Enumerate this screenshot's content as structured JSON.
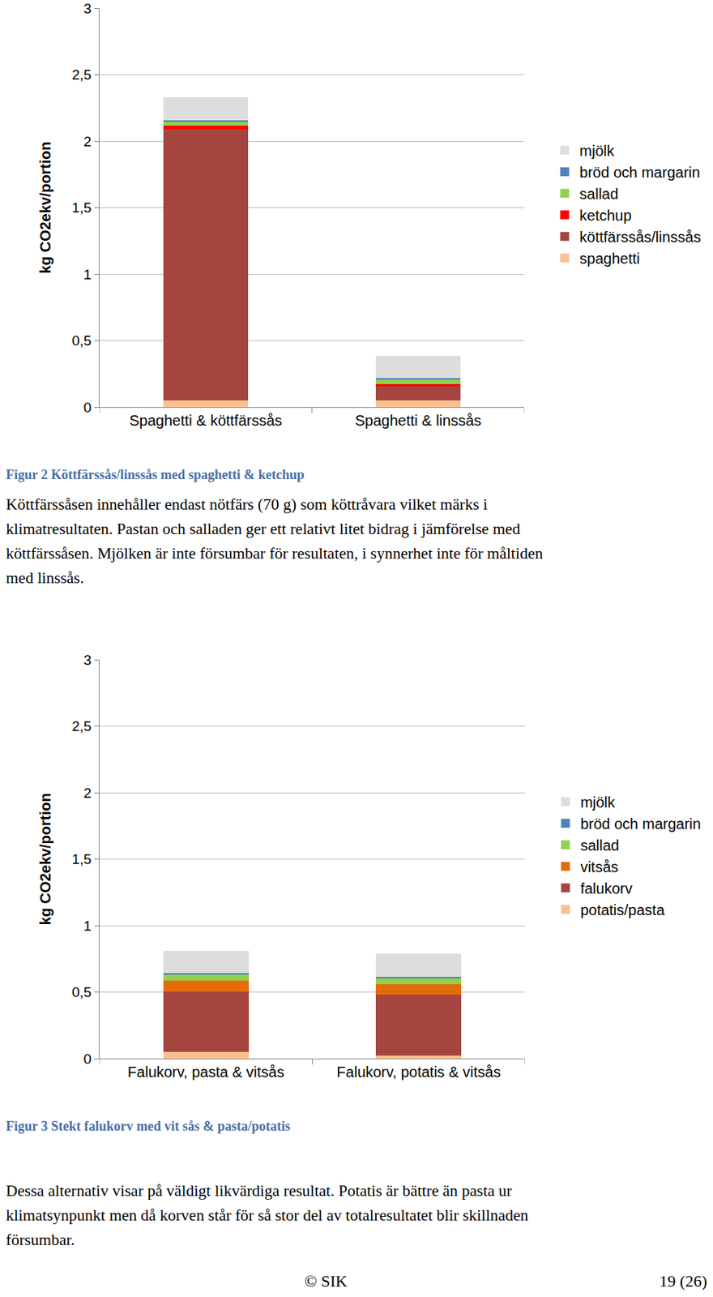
{
  "chart_data": [
    {
      "type": "bar",
      "stacked": true,
      "y_label": "kg CO2ekv/portion",
      "categories": [
        "Spaghetti & köttfärssås",
        "Spaghetti & linssås"
      ],
      "series": [
        {
          "name": "spaghetti",
          "color": "#f9c08f",
          "values": [
            0.05,
            0.05
          ]
        },
        {
          "name": "köttfärssås/linssås",
          "color": "#a5453f",
          "values": [
            2.04,
            0.105
          ]
        },
        {
          "name": "ketchup",
          "color": "#ff0000",
          "values": [
            0.025,
            0.02
          ]
        },
        {
          "name": "sallad",
          "color": "#92d050",
          "values": [
            0.03,
            0.03
          ]
        },
        {
          "name": "bröd och margarin",
          "color": "#4f81bd",
          "values": [
            0.012,
            0.012
          ]
        },
        {
          "name": "mjölk",
          "color": "#dddddd",
          "values": [
            0.175,
            0.17
          ]
        }
      ],
      "ylim": [
        0,
        3
      ],
      "yticks": [
        0,
        {
          "value": 0.5,
          "label": "0,5"
        },
        1,
        {
          "value": 1.5,
          "label": "1,5"
        },
        2,
        {
          "value": 2.5,
          "label": "2,5"
        },
        3
      ],
      "grid": true,
      "legend": "right"
    },
    {
      "type": "bar",
      "stacked": true,
      "y_label": "kg CO2ekv/portion",
      "categories": [
        "Falukorv, pasta & vitsås",
        "Falukorv, potatis & vitsås"
      ],
      "series": [
        {
          "name": "potatis/pasta",
          "color": "#f9c08f",
          "values": [
            0.05,
            0.025
          ]
        },
        {
          "name": "falukorv",
          "color": "#a5453f",
          "values": [
            0.455,
            0.455
          ]
        },
        {
          "name": "vitsås",
          "color": "#e46c0a",
          "values": [
            0.08,
            0.08
          ]
        },
        {
          "name": "sallad",
          "color": "#92d050",
          "values": [
            0.045,
            0.045
          ]
        },
        {
          "name": "bröd och margarin",
          "color": "#4f81bd",
          "values": [
            0.012,
            0.012
          ]
        },
        {
          "name": "mjölk",
          "color": "#dddddd",
          "values": [
            0.17,
            0.17
          ]
        }
      ],
      "ylim": [
        0,
        3
      ],
      "yticks": [
        0,
        {
          "value": 0.5,
          "label": "0,5"
        },
        1,
        {
          "value": 1.5,
          "label": "1,5"
        },
        2,
        {
          "value": 2.5,
          "label": "2,5"
        },
        3
      ],
      "grid": true,
      "legend": "right"
    }
  ],
  "document": {
    "figures": [
      {
        "caption": "Figur 2 Köttfärssås/linssås med spaghetti & ketchup",
        "text": [
          "Köttfärssåsen innehåller endast nötfärs (70 g) som köttråvara vilket märks i",
          "klimatresultaten. Pastan och salladen ger ett relativt litet bidrag i jämförelse med",
          "köttfärssåsen. Mjölken är inte försumbar för resultaten, i synnerhet inte för måltiden",
          "med linssås."
        ]
      },
      {
        "caption": "Figur 3 Stekt falukorv med vit sås & pasta/potatis",
        "text": [
          "Dessa alternativ visar på väldigt likvärdiga resultat. Potatis är bättre än pasta ur",
          "klimatsynpunkt men då korven står för så stor del av totalresultatet blir skillnaden",
          "försumbar."
        ]
      }
    ],
    "footer": {
      "left": "© SIK",
      "right": "19 (26)"
    }
  }
}
